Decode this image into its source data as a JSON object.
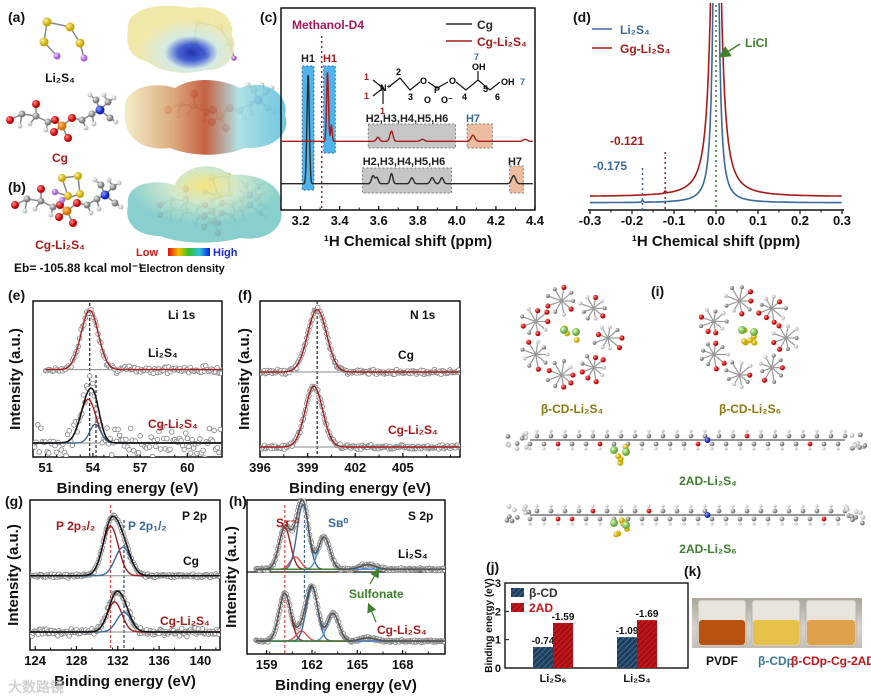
{
  "panel_labels": {
    "a": "(a)",
    "b": "(b)",
    "c": "(c)",
    "d": "(d)",
    "e": "(e)",
    "f": "(f)",
    "g": "(g)",
    "h": "(h)",
    "i": "(i)",
    "j": "(j)",
    "k": "(k)"
  },
  "panel_ab": {
    "li2s4_label": "Li₂S₄",
    "cg_label": "Cg",
    "cg_li2s4_label": "Cg-Li₂S₄",
    "binding_energy": "Eb= -105.88 kcal mol⁻¹",
    "colorbar_low": "Low",
    "colorbar_high": "High",
    "colorbar_title": "Electron density"
  },
  "colors": {
    "red": "#a61c1c",
    "blue": "#3b6a98",
    "black": "#2a2a2a",
    "green": "#3f7f2e",
    "magenta": "#a3195b",
    "orange": "#e9b28f",
    "cyan": "#4fb4ec",
    "gray": "#9a9a9a"
  },
  "watermark": "大数路镜",
  "chart_data": [
    {
      "id": "c",
      "type": "line",
      "xlabel": "¹H Chemical shift (ppm)",
      "ylabel": "",
      "xlim": [
        3.1,
        4.4
      ],
      "ylim": [
        0,
        100
      ],
      "xticks": [
        "3.2",
        "3.4",
        "3.6",
        "3.8",
        "4.0",
        "4.2",
        "4.4"
      ],
      "legend": [
        {
          "label": "Cg",
          "color": "#2a2a2a"
        },
        {
          "label": "Cg-Li₂S₄",
          "color": "#a61c1c"
        }
      ],
      "solvent_label": "Methanol-D4",
      "solvent_shift": 3.31,
      "annotations": {
        "h1_cg": "H1",
        "h1_cgli": "H1",
        "h_group_cgli": "H2,H3,H4,H5,H6",
        "h7_cgli": "H7",
        "h_group_cg": "H2,H3,H4,H5,H6",
        "h7_cg": "H7"
      },
      "structure_labels": {
        "n": "N⁺",
        "o1": "O",
        "p": "P",
        "o2": "O",
        "o3": "O",
        "o4": "O⁻",
        "oh1": "OH",
        "oh2": "OH",
        "n1a": "1",
        "n1b": "1",
        "n1c": "1",
        "n2": "2",
        "n3": "3",
        "n4": "4",
        "n5": "5",
        "n6": "6",
        "n7a": "7",
        "n7b": "7"
      },
      "series": [
        {
          "name": "Cg",
          "color": "#2a2a2a",
          "baseline": 13,
          "peaks": [
            [
              3.24,
              54,
              0.006
            ],
            [
              3.575,
              4,
              0.008
            ],
            [
              3.595,
              3,
              0.007
            ],
            [
              3.67,
              5,
              0.007
            ],
            [
              3.775,
              3,
              0.008
            ],
            [
              3.88,
              3,
              0.009
            ],
            [
              3.93,
              3,
              0.008
            ],
            [
              4.3,
              4,
              0.01
            ]
          ]
        },
        {
          "name": "Cg-Li₂S₄",
          "color": "#a61c1c",
          "baseline": 34,
          "peaks": [
            [
              3.34,
              34,
              0.005
            ],
            [
              3.36,
              8,
              0.004
            ],
            [
              3.6,
              2,
              0.008
            ],
            [
              3.67,
              5,
              0.008
            ],
            [
              3.83,
              1,
              0.01
            ],
            [
              4.09,
              3,
              0.01
            ],
            [
              4.36,
              1,
              0.01
            ]
          ]
        }
      ]
    },
    {
      "id": "d",
      "type": "line",
      "xlabel": "¹H Chemical shift (ppm)",
      "ylabel": "",
      "xlim": [
        -0.3,
        0.3
      ],
      "ylim": [
        0,
        100
      ],
      "xticks": [
        "-0.3",
        "-0.2",
        "-0.1",
        "0.0",
        "0.1",
        "0.2",
        "0.3"
      ],
      "legend": [
        {
          "label": "Li₂S₄",
          "color": "#3b6a98"
        },
        {
          "label": "Gg-Li₂S₄",
          "color": "#a61c1c"
        }
      ],
      "annotations": {
        "licl": "LiCl",
        "shift_li2s4": "-0.175",
        "shift_cgli": "-0.121"
      },
      "series": [
        {
          "name": "Li₂S₄",
          "color": "#3b6a98",
          "baseline": 3.5,
          "lorentz": [
            0,
            246,
            0.006
          ],
          "bump": [
            -0.175,
            1,
            0.002
          ]
        },
        {
          "name": "Gg-Li₂S₄",
          "color": "#a61c1c",
          "baseline": 6.5,
          "lorentz": [
            0,
            260,
            0.01
          ],
          "bump": [
            -0.121,
            1,
            0.002
          ]
        }
      ]
    },
    {
      "id": "e",
      "type": "scatter",
      "xlabel": "Binding energy (eV)",
      "ylabel": "Intensity (a.u.)",
      "xlim": [
        50.2,
        62.2
      ],
      "ylim": [
        0,
        100
      ],
      "xticks": [
        "51",
        "54",
        "57",
        "60"
      ],
      "core_level": "Li 1s",
      "labels": {
        "top": "Li₂S₄",
        "bottom": "Cg-Li₂S₄"
      },
      "reference_lines": [
        53.8,
        54.2
      ],
      "traces": [
        {
          "name": "Li₂S₄",
          "baseline": 56,
          "range": [
            51,
            63.3
          ],
          "noise": 1.6,
          "step": 0.09,
          "components": [
            {
              "center": 53.8,
              "height": 38,
              "sigma": 0.55,
              "color": "#a61c1c"
            }
          ],
          "envelope": false
        },
        {
          "name": "Cg-Li₂S₄",
          "baseline": 9,
          "range": [
            50.2,
            62.2
          ],
          "noise": 7,
          "step": 0.1,
          "components": [
            {
              "center": 53.7,
              "height": 28,
              "sigma": 0.5,
              "color": "#a61c1c"
            },
            {
              "center": 54.15,
              "height": 12,
              "sigma": 0.35,
              "color": "#3b6a98"
            }
          ],
          "envelope": true
        }
      ]
    },
    {
      "id": "f",
      "type": "scatter",
      "xlabel": "Binding energy (eV)",
      "ylabel": "Intensity (a.u.)",
      "xlim": [
        396,
        408.6
      ],
      "ylim": [
        0,
        100
      ],
      "xticks": [
        "396",
        "399",
        "402",
        "405"
      ],
      "core_level": "N 1s",
      "labels": {
        "top": "Cg",
        "bottom": "Cg-Li₂S₄"
      },
      "reference_lines": [
        399.6
      ],
      "traces": [
        {
          "name": "Cg",
          "baseline": 54.5,
          "range": [
            396,
            408.6
          ],
          "noise": 1,
          "step": 0.07,
          "components": [
            {
              "center": 399.6,
              "height": 40,
              "sigma": 0.6,
              "color": "#a61c1c"
            }
          ],
          "envelope": false
        },
        {
          "name": "Cg-Li₂S₄",
          "baseline": 6.4,
          "range": [
            396,
            408.6
          ],
          "noise": 1,
          "step": 0.07,
          "components": [
            {
              "center": 399.4,
              "height": 39,
              "sigma": 0.55,
              "color": "#a61c1c"
            }
          ],
          "envelope": false
        }
      ]
    },
    {
      "id": "g",
      "type": "scatter",
      "xlabel": "Binding energy (eV)",
      "ylabel": "Intensity (a.u.)",
      "xlim": [
        123.5,
        141.9
      ],
      "ylim": [
        0,
        100
      ],
      "xticks": [
        "124",
        "128",
        "132",
        "136",
        "140"
      ],
      "core_level": "P 2p",
      "labels": {
        "top": "Cg",
        "bottom": "Cg-Li₂S₄",
        "p32": "P 2p₃/₂",
        "p12": "P 2p₁/₂"
      },
      "reference_lines": [
        131.3,
        132.6
      ],
      "traces": [
        {
          "name": "Cg",
          "baseline": 49.5,
          "range": [
            123.5,
            141.9
          ],
          "noise": 0.8,
          "step": 0.1,
          "components": [
            {
              "center": 131.3,
              "height": 33,
              "sigma": 0.75,
              "color": "#a61c1c"
            },
            {
              "center": 132.5,
              "height": 19,
              "sigma": 0.75,
              "color": "#3b6a98"
            }
          ],
          "envelope": true
        },
        {
          "name": "Cg-Li₂S₄",
          "baseline": 12,
          "range": [
            123.5,
            141.9
          ],
          "noise": 1.6,
          "step": 0.1,
          "components": [
            {
              "center": 131.7,
              "height": 20,
              "sigma": 0.7,
              "color": "#a61c1c"
            },
            {
              "center": 132.6,
              "height": 13,
              "sigma": 0.7,
              "color": "#3b6a98"
            }
          ],
          "envelope": true
        }
      ]
    },
    {
      "id": "h",
      "type": "scatter",
      "xlabel": "Binding energy (eV)",
      "ylabel": "Intensity (a.u.)",
      "xlim": [
        157.7,
        170.8
      ],
      "ylim": [
        0,
        100
      ],
      "xticks": [
        "159",
        "162",
        "165",
        "168"
      ],
      "core_level": "S 2p",
      "labels": {
        "top": "Li₂S₄",
        "bottom": "Cg-Li₂S₄",
        "sulfonate": "Sulfonate",
        "st": "Sᴛ⁻¹",
        "sb": "Sʙ⁰"
      },
      "reference_lines": [
        160.2,
        161.5
      ],
      "traces": [
        {
          "name": "Li₂S₄",
          "baseline": 55,
          "range": [
            158.3,
            170.8
          ],
          "noise": 0.6,
          "step": 0.06,
          "components": [
            {
              "center": 160.2,
              "height": 27,
              "sigma": 0.38,
              "color": "#a61c1c"
            },
            {
              "center": 160.9,
              "height": 8,
              "sigma": 0.35,
              "color": "#e04a4a"
            },
            {
              "center": 161.4,
              "height": 42,
              "sigma": 0.38,
              "color": "#3b6a98"
            },
            {
              "center": 162.8,
              "height": 21,
              "sigma": 0.38,
              "color": "#4f8fd0"
            },
            {
              "center": 165.7,
              "height": 3,
              "sigma": 0.5,
              "color": "#3f7f2e"
            }
          ],
          "envelope": true
        },
        {
          "name": "Cg-Li₂S₄",
          "baseline": 8.4,
          "range": [
            158.3,
            170.8
          ],
          "noise": 0.6,
          "step": 0.06,
          "components": [
            {
              "center": 160.2,
              "height": 31,
              "sigma": 0.38,
              "color": "#a61c1c"
            },
            {
              "center": 161.3,
              "height": 6.5,
              "sigma": 0.35,
              "color": "#e04a4a"
            },
            {
              "center": 162.0,
              "height": 35,
              "sigma": 0.38,
              "color": "#3b6a98"
            },
            {
              "center": 163.4,
              "height": 18,
              "sigma": 0.38,
              "color": "#4f8fd0"
            },
            {
              "center": 165.7,
              "height": 2,
              "sigma": 0.5,
              "color": "#3f7f2e"
            }
          ],
          "envelope": true
        }
      ]
    },
    {
      "id": "j",
      "type": "bar",
      "xlabel": "",
      "ylabel": "Binding energy (eV)",
      "ylim": [
        0,
        -3
      ],
      "yticks": [
        "-3",
        "-2",
        "-1",
        "0"
      ],
      "categories": [
        "Li₂S₆",
        "Li₂S₄"
      ],
      "series": [
        {
          "name": "β-CD",
          "color": "#1f3d5c",
          "values": [
            -0.74,
            -1.09
          ],
          "labels": [
            "-0.74",
            "-1.09"
          ]
        },
        {
          "name": "2AD",
          "color": "#c0151b",
          "values": [
            -1.59,
            -1.69
          ],
          "labels": [
            "-1.59",
            "-1.69"
          ]
        }
      ]
    }
  ],
  "panel_i": {
    "labels": [
      "β-CD-Li₂S₄",
      "β-CD-Li₂S₆",
      "2AD-Li₂S₄",
      "2AD-Li₂S₆"
    ]
  },
  "panel_k": {
    "labels": [
      "PVDF",
      "β-CDp",
      "β-CDp-Cg-2AD"
    ]
  }
}
